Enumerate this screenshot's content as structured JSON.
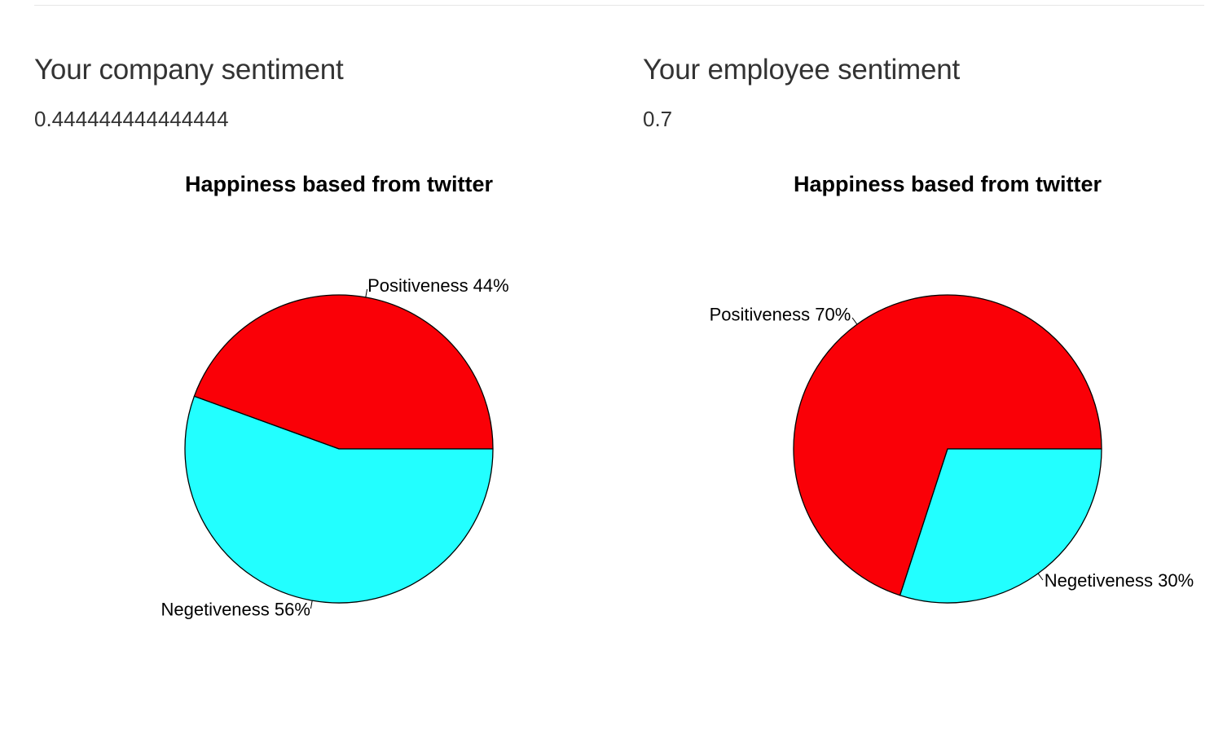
{
  "company": {
    "heading": "Your company sentiment",
    "value": "0.444444444444444"
  },
  "employee": {
    "heading": "Your employee sentiment",
    "value": "0.7"
  },
  "colors": {
    "positive": "#fa0007",
    "negative": "#22ffff",
    "outline": "#000000"
  },
  "chart_data": [
    {
      "type": "pie",
      "title": "Happiness based from twitter",
      "labels": [
        "Positiveness 44%",
        "Negetiveness 56%"
      ],
      "values": [
        44.4444,
        55.5556
      ],
      "colors": [
        "#fa0007",
        "#22ffff"
      ]
    },
    {
      "type": "pie",
      "title": "Happiness based from twitter",
      "labels": [
        "Positiveness 70%",
        "Negetiveness 30%"
      ],
      "values": [
        70,
        30
      ],
      "colors": [
        "#fa0007",
        "#22ffff"
      ]
    }
  ]
}
